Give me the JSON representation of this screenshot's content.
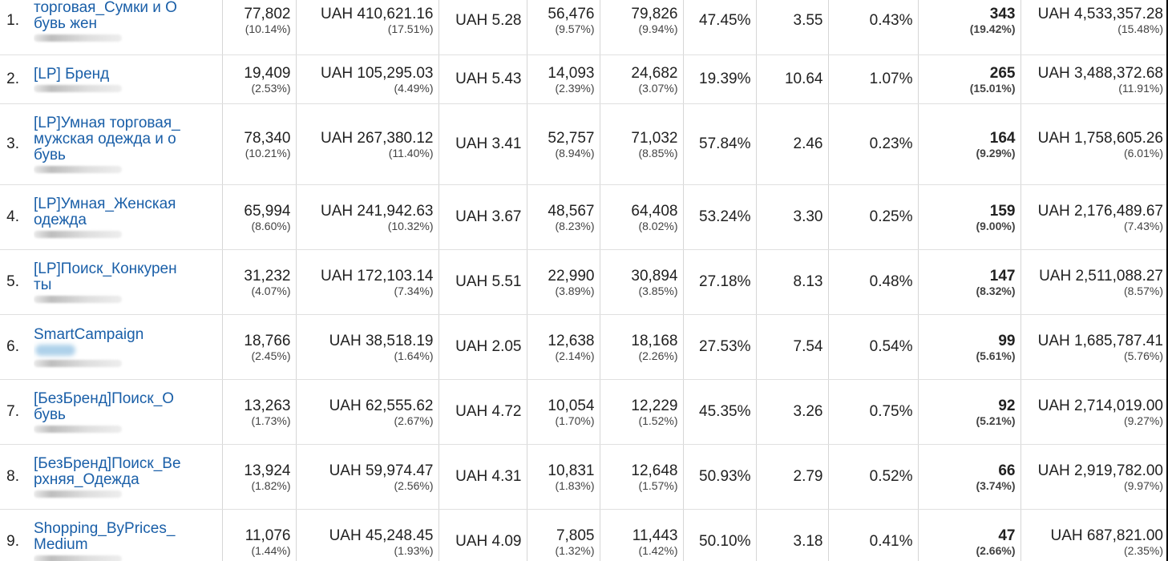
{
  "columns_meta": {
    "note_colors": {
      "link": "#1a5fa8",
      "border": "#e0e0e0",
      "text": "#212121"
    }
  },
  "rows": [
    {
      "index": "1.",
      "campaign": "торговая_Сумки и Обувь жен",
      "c1": {
        "value": "77,802",
        "pct": "(10.14%)"
      },
      "c2": {
        "value": "UAH 410,621.16",
        "pct": "(17.51%)"
      },
      "c3": "UAH 5.28",
      "c4": {
        "value": "56,476",
        "pct": "(9.57%)"
      },
      "c5": {
        "value": "79,826",
        "pct": "(9.94%)"
      },
      "c6": "47.45%",
      "c7": "3.55",
      "c8": "0.43%",
      "c9": {
        "value": "343",
        "pct": "(19.42%)"
      },
      "c10": {
        "value": "UAH 4,533,357.28",
        "pct": "(15.48%)"
      }
    },
    {
      "index": "2.",
      "campaign": "[LP] Бренд",
      "c1": {
        "value": "19,409",
        "pct": "(2.53%)"
      },
      "c2": {
        "value": "UAH 105,295.03",
        "pct": "(4.49%)"
      },
      "c3": "UAH 5.43",
      "c4": {
        "value": "14,093",
        "pct": "(2.39%)"
      },
      "c5": {
        "value": "24,682",
        "pct": "(3.07%)"
      },
      "c6": "19.39%",
      "c7": "10.64",
      "c8": "1.07%",
      "c9": {
        "value": "265",
        "pct": "(15.01%)"
      },
      "c10": {
        "value": "UAH 3,488,372.68",
        "pct": "(11.91%)"
      }
    },
    {
      "index": "3.",
      "campaign": "[LP]Умная торговая_мужская одежда и обувь",
      "c1": {
        "value": "78,340",
        "pct": "(10.21%)"
      },
      "c2": {
        "value": "UAH 267,380.12",
        "pct": "(11.40%)"
      },
      "c3": "UAH 3.41",
      "c4": {
        "value": "52,757",
        "pct": "(8.94%)"
      },
      "c5": {
        "value": "71,032",
        "pct": "(8.85%)"
      },
      "c6": "57.84%",
      "c7": "2.46",
      "c8": "0.23%",
      "c9": {
        "value": "164",
        "pct": "(9.29%)"
      },
      "c10": {
        "value": "UAH 1,758,605.26",
        "pct": "(6.01%)"
      }
    },
    {
      "index": "4.",
      "campaign": "[LP]Умная_Женская одежда",
      "c1": {
        "value": "65,994",
        "pct": "(8.60%)"
      },
      "c2": {
        "value": "UAH 241,942.63",
        "pct": "(10.32%)"
      },
      "c3": "UAH 3.67",
      "c4": {
        "value": "48,567",
        "pct": "(8.23%)"
      },
      "c5": {
        "value": "64,408",
        "pct": "(8.02%)"
      },
      "c6": "53.24%",
      "c7": "3.30",
      "c8": "0.25%",
      "c9": {
        "value": "159",
        "pct": "(9.00%)"
      },
      "c10": {
        "value": "UAH 2,176,489.67",
        "pct": "(7.43%)"
      }
    },
    {
      "index": "5.",
      "campaign": "[LP]Поиск_Конкурен ты",
      "c1": {
        "value": "31,232",
        "pct": "(4.07%)"
      },
      "c2": {
        "value": "UAH 172,103.14",
        "pct": "(7.34%)"
      },
      "c3": "UAH 5.51",
      "c4": {
        "value": "22,990",
        "pct": "(3.89%)"
      },
      "c5": {
        "value": "30,894",
        "pct": "(3.85%)"
      },
      "c6": "27.18%",
      "c7": "8.13",
      "c8": "0.48%",
      "c9": {
        "value": "147",
        "pct": "(8.32%)"
      },
      "c10": {
        "value": "UAH 2,511,088.27",
        "pct": "(8.57%)"
      }
    },
    {
      "index": "6.",
      "campaign": "SmartCampaign",
      "c1": {
        "value": "18,766",
        "pct": "(2.45%)"
      },
      "c2": {
        "value": "UAH 38,518.19",
        "pct": "(1.64%)"
      },
      "c3": "UAH 2.05",
      "c4": {
        "value": "12,638",
        "pct": "(2.14%)"
      },
      "c5": {
        "value": "18,168",
        "pct": "(2.26%)"
      },
      "c6": "27.53%",
      "c7": "7.54",
      "c8": "0.54%",
      "c9": {
        "value": "99",
        "pct": "(5.61%)"
      },
      "c10": {
        "value": "UAH 1,685,787.41",
        "pct": "(5.76%)"
      }
    },
    {
      "index": "7.",
      "campaign": "[БезБренд]Поиск_О бувь",
      "c1": {
        "value": "13,263",
        "pct": "(1.73%)"
      },
      "c2": {
        "value": "UAH 62,555.62",
        "pct": "(2.67%)"
      },
      "c3": "UAH 4.72",
      "c4": {
        "value": "10,054",
        "pct": "(1.70%)"
      },
      "c5": {
        "value": "12,229",
        "pct": "(1.52%)"
      },
      "c6": "45.35%",
      "c7": "3.26",
      "c8": "0.75%",
      "c9": {
        "value": "92",
        "pct": "(5.21%)"
      },
      "c10": {
        "value": "UAH 2,714,019.00",
        "pct": "(9.27%)"
      }
    },
    {
      "index": "8.",
      "campaign": "[БезБренд]Поиск_Ве рхняя_Одежда",
      "c1": {
        "value": "13,924",
        "pct": "(1.82%)"
      },
      "c2": {
        "value": "UAH 59,974.47",
        "pct": "(2.56%)"
      },
      "c3": "UAH 4.31",
      "c4": {
        "value": "10,831",
        "pct": "(1.83%)"
      },
      "c5": {
        "value": "12,648",
        "pct": "(1.57%)"
      },
      "c6": "50.93%",
      "c7": "2.79",
      "c8": "0.52%",
      "c9": {
        "value": "66",
        "pct": "(3.74%)"
      },
      "c10": {
        "value": "UAH 2,919,782.00",
        "pct": "(9.97%)"
      }
    },
    {
      "index": "9.",
      "campaign": "Shopping_ByPrices_ Medium",
      "c1": {
        "value": "11,076",
        "pct": "(1.44%)"
      },
      "c2": {
        "value": "UAH 45,248.45",
        "pct": "(1.93%)"
      },
      "c3": "UAH 4.09",
      "c4": {
        "value": "7,805",
        "pct": "(1.32%)"
      },
      "c5": {
        "value": "11,443",
        "pct": "(1.42%)"
      },
      "c6": "50.10%",
      "c7": "3.18",
      "c8": "0.41%",
      "c9": {
        "value": "47",
        "pct": "(2.66%)"
      },
      "c10": {
        "value": "UAH 687,821.00",
        "pct": "(2.35%)"
      }
    }
  ]
}
